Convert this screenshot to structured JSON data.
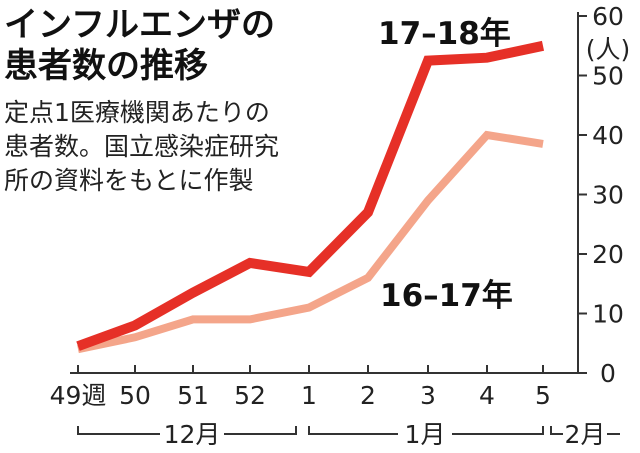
{
  "chart_data": {
    "type": "line",
    "title": [
      "インフルエンザの",
      "患者数の推移"
    ],
    "note": [
      "定点1医療機関あたりの",
      "患者数。国立感染症研究",
      "所の資料をもとに作製"
    ],
    "x_tick_labels": [
      "49週",
      "50",
      "51",
      "52",
      "1",
      "2",
      "3",
      "4",
      "5"
    ],
    "y_ticks": [
      0,
      10,
      20,
      30,
      40,
      50,
      60
    ],
    "y_unit": "(人)",
    "ylim": [
      0,
      60
    ],
    "month_labels": [
      "12月",
      "1月",
      "2月"
    ],
    "series": [
      {
        "name": "17–18年",
        "color": "#e63027",
        "values": [
          4.5,
          8,
          13.5,
          18.5,
          17,
          27,
          52.5,
          53,
          55
        ]
      },
      {
        "name": "16–17年",
        "color": "#f4a58a",
        "values": [
          4,
          6,
          9,
          9,
          11,
          16,
          29,
          40,
          38.5
        ]
      }
    ]
  }
}
